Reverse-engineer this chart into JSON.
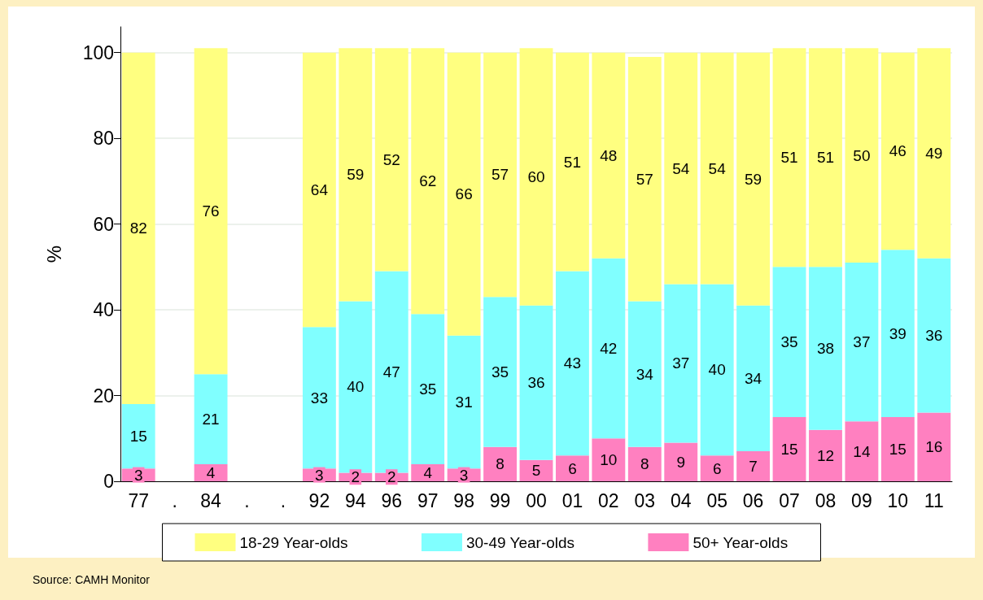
{
  "chart_data": {
    "type": "bar",
    "stacked": true,
    "data_labels": true,
    "ylabel": "%",
    "categories": [
      "77",
      ".",
      "84",
      ".",
      ".",
      "92",
      "94",
      "96",
      "97",
      "98",
      "99",
      "00",
      "01",
      "02",
      "03",
      "04",
      "05",
      "06",
      "07",
      "08",
      "09",
      "10",
      "11"
    ],
    "series": [
      {
        "name": "50+ Year-olds",
        "color": "#ff80c0",
        "values": [
          3,
          null,
          4,
          null,
          null,
          3,
          2,
          2,
          4,
          3,
          8,
          5,
          6,
          10,
          8,
          9,
          6,
          7,
          15,
          12,
          14,
          15,
          16
        ]
      },
      {
        "name": "30-49 Year-olds",
        "color": "#80ffff",
        "values": [
          15,
          null,
          21,
          null,
          null,
          33,
          40,
          47,
          35,
          31,
          35,
          36,
          43,
          42,
          34,
          37,
          40,
          34,
          35,
          38,
          37,
          39,
          36
        ]
      },
      {
        "name": "18-29 Year-olds",
        "color": "#ffff80",
        "values": [
          82,
          null,
          76,
          null,
          null,
          64,
          59,
          52,
          62,
          66,
          57,
          60,
          51,
          48,
          57,
          54,
          54,
          59,
          51,
          51,
          50,
          46,
          49
        ]
      }
    ],
    "ylim": [
      0,
      106
    ],
    "yticks": [
      0,
      20,
      40,
      60,
      80,
      100
    ],
    "grid": "y",
    "legend": "bottom",
    "annotations": [
      "Source: CAMH Monitor"
    ]
  }
}
